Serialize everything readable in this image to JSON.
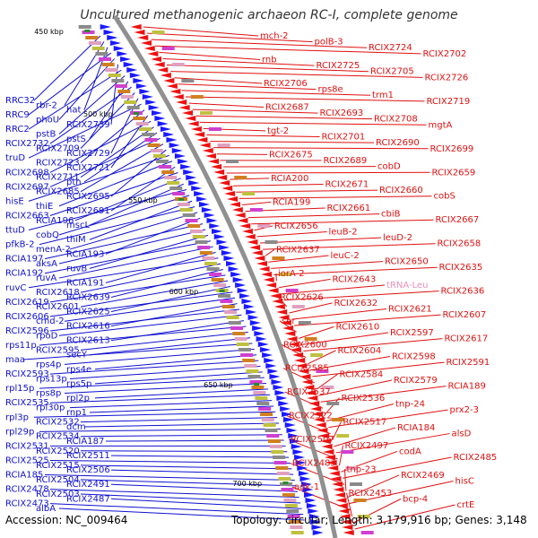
{
  "title": "Uncultured methanogenic archaeon RC-I, complete genome",
  "accession_text": "Accession: NC_009464",
  "stats_text": "Topology: circular; Length: 3,179,916 bp; Genes: 3,148",
  "colors": {
    "left_labels": "#1010d0",
    "right_labels": "#e01010",
    "rna_label": "#e890b8",
    "backbone": "#909090",
    "ticks": "#2a8a2a"
  },
  "scale_ticks": [
    "450 kbp",
    "500 kbp",
    "550 kbp",
    "600 kbp",
    "650 kbp",
    "700 kbp"
  ],
  "left_labels": [
    "RRC32",
    "rbr-2",
    "hat",
    "RRC9",
    "phoU",
    "RCIX2739",
    "RRC2",
    "pstB",
    "pstS",
    "RCIX2732",
    "RCIX2709",
    "RCIX2729",
    "truD",
    "RCIX2723",
    "RCIX2721",
    "RCIX2698",
    "RCIX2711",
    "pth",
    "RCIX2697",
    "RCIX2685",
    "RCIX2695",
    "hisE",
    "thiE",
    "RCIX2691",
    "RCIX2663",
    "RCIA196",
    "mscL",
    "ttuD",
    "cobQ",
    "thiM",
    "pfkB-2",
    "menA-2",
    "RCIA193",
    "RCIA197",
    "aksA",
    "ruvB",
    "RCIA192",
    "ruvA",
    "RCIA191",
    "ruvC",
    "RCIX2618",
    "RCIX2639",
    "RCIX2619",
    "RCIX2601",
    "RCIX2625",
    "RCIX2606",
    "cmd-2",
    "RCIX2616",
    "RCIX2596",
    "rpoD",
    "RCIX2613",
    "rps11p",
    "RCIX2595",
    "secY",
    "maa",
    "rps4p",
    "rps4e",
    "RCIX2593",
    "rps13p",
    "rps5p",
    "rpl15p",
    "rps8p",
    "rpl2p",
    "RCIX2535",
    "rpl30p",
    "rnp1",
    "rpl3p",
    "RCIX2532",
    "dcm",
    "rpl29p",
    "RCIX2534",
    "RCIA187",
    "RCIX2531",
    "RCIX2520",
    "RCIX2511",
    "RCIX2525",
    "RCIX2515",
    "RCIX2506",
    "RCIA185",
    "RCIX2504",
    "RCIX2491",
    "RCIX2478",
    "RCIX2503",
    "RCIX2487",
    "RCIX2473",
    "albA"
  ],
  "right_labels": [
    "mch-2",
    "polB-3",
    "RCIX2724",
    "RCIX2702",
    "rnb",
    "RCIX2725",
    "RCIX2705",
    "RCIX2726",
    "RCIX2706",
    "rps8e",
    "trm1",
    "RCIX2719",
    "RCIX2687",
    "RCIX2693",
    "RCIX2708",
    "mgtA",
    "tgt-2",
    "RCIX2701",
    "RCIX2690",
    "RCIX2699",
    "RCIX2675",
    "RCIX2689",
    "cobD",
    "RCIX2659",
    "RCIA200",
    "RCIX2671",
    "RCIX2660",
    "cobS",
    "RCIA199",
    "RCIX2661",
    "cbiB",
    "RCIX2667",
    "RCIX2656",
    "leuB-2",
    "leuD-2",
    "RCIX2658",
    "RCIX2637",
    "leuC-2",
    "RCIX2650",
    "RCIX2635",
    "iorA-2",
    "RCIX2643",
    "tRNA-Leu",
    "RCIX2636",
    "RCIX2626",
    "RCIX2632",
    "RCIX2621",
    "RCIX2607",
    "sor",
    "RCIX2610",
    "RCIX2597",
    "RCIX2617",
    "RCIX2600",
    "RCIX2604",
    "RCIX2598",
    "RCIX2591",
    "RCIX2585",
    "RCIX2584",
    "RCIX2579",
    "RCIA189",
    "RCIX2537",
    "RCIX2536",
    "tnp-24",
    "prx2-3",
    "RCIX2522",
    "RCIX2517",
    "RCIA184",
    "alsD",
    "RCIX2507",
    "RCIX2497",
    "codA",
    "RCIX2485",
    "RCIX2483",
    "tnp-23",
    "RCIX2469",
    "hisC",
    "adk-1",
    "RCIX2453",
    "bcp-4",
    "crtE"
  ],
  "rna_labels": [
    "tRNA-Leu"
  ]
}
